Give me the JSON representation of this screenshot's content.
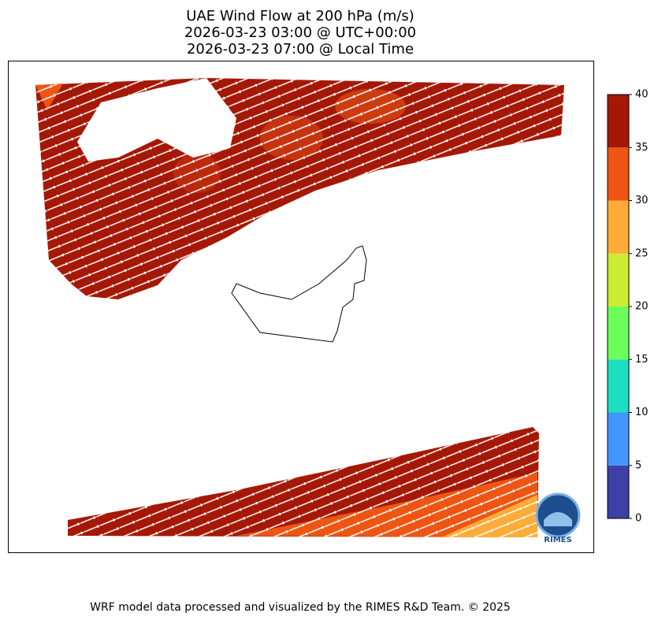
{
  "title": [
    "UAE Wind Flow at 200 hPa (m/s)",
    "2026-03-23 03:00 @ UTC+00:00",
    "2026-03-23 07:00 @ Local Time"
  ],
  "colorbar": {
    "lim": [
      0,
      40
    ],
    "ticks": [
      0,
      5,
      10,
      15,
      20,
      25,
      30,
      35,
      40
    ],
    "colors": [
      "#3f3fa8",
      "#4496ff",
      "#1bdfc0",
      "#6bff5a",
      "#cbec30",
      "#feab37",
      "#ee5513",
      "#a51806"
    ]
  },
  "logo": "RIMES",
  "footer": "WRF model data processed and visualized by the RIMES R&D Team. © 2025"
}
